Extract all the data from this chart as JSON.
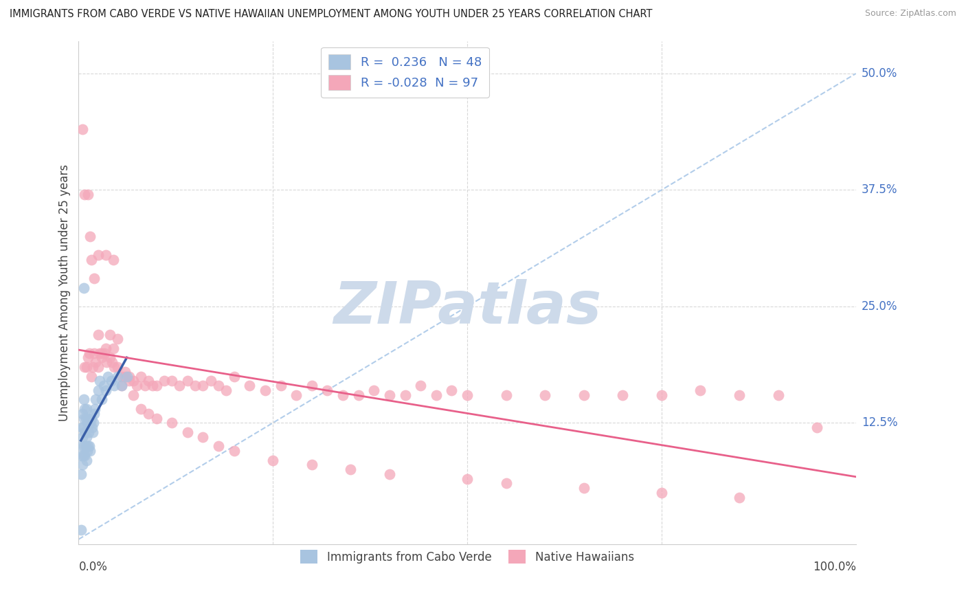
{
  "title": "IMMIGRANTS FROM CABO VERDE VS NATIVE HAWAIIAN UNEMPLOYMENT AMONG YOUTH UNDER 25 YEARS CORRELATION CHART",
  "source": "Source: ZipAtlas.com",
  "ylabel": "Unemployment Among Youth under 25 years",
  "ytick_labels": [
    "12.5%",
    "25.0%",
    "37.5%",
    "50.0%"
  ],
  "ytick_values": [
    0.125,
    0.25,
    0.375,
    0.5
  ],
  "xlim": [
    0.0,
    1.0
  ],
  "ylim": [
    -0.005,
    0.535
  ],
  "cabo_verde_R": 0.236,
  "cabo_verde_N": 48,
  "native_hawaiian_R": -0.028,
  "native_hawaiian_N": 97,
  "cabo_verde_color": "#a8c4e0",
  "native_hawaiian_color": "#f4a7b9",
  "cabo_verde_line_color": "#3a5fa8",
  "native_hawaiian_line_color": "#e8608a",
  "dashed_line_color": "#aac8e8",
  "watermark_color": "#cddaea",
  "background_color": "#ffffff",
  "grid_color": "#d8d8d8",
  "cabo_verde_x": [
    0.003,
    0.003,
    0.004,
    0.004,
    0.005,
    0.005,
    0.005,
    0.006,
    0.006,
    0.007,
    0.007,
    0.007,
    0.008,
    0.008,
    0.008,
    0.009,
    0.009,
    0.01,
    0.01,
    0.01,
    0.011,
    0.011,
    0.012,
    0.012,
    0.013,
    0.014,
    0.015,
    0.015,
    0.016,
    0.017,
    0.018,
    0.019,
    0.02,
    0.021,
    0.022,
    0.025,
    0.027,
    0.03,
    0.032,
    0.035,
    0.038,
    0.042,
    0.046,
    0.05,
    0.055,
    0.062,
    0.007,
    0.003
  ],
  "cabo_verde_y": [
    0.07,
    0.09,
    0.1,
    0.12,
    0.08,
    0.11,
    0.135,
    0.09,
    0.12,
    0.1,
    0.13,
    0.15,
    0.09,
    0.115,
    0.14,
    0.1,
    0.13,
    0.085,
    0.11,
    0.14,
    0.095,
    0.125,
    0.1,
    0.13,
    0.115,
    0.1,
    0.095,
    0.125,
    0.13,
    0.12,
    0.115,
    0.125,
    0.135,
    0.14,
    0.15,
    0.16,
    0.17,
    0.15,
    0.165,
    0.16,
    0.175,
    0.17,
    0.165,
    0.175,
    0.165,
    0.175,
    0.27,
    0.01
  ],
  "native_hawaiian_x": [
    0.005,
    0.008,
    0.01,
    0.012,
    0.014,
    0.016,
    0.018,
    0.02,
    0.022,
    0.025,
    0.027,
    0.03,
    0.033,
    0.036,
    0.04,
    0.043,
    0.046,
    0.05,
    0.055,
    0.06,
    0.065,
    0.07,
    0.075,
    0.08,
    0.085,
    0.09,
    0.095,
    0.1,
    0.11,
    0.12,
    0.13,
    0.14,
    0.15,
    0.16,
    0.17,
    0.18,
    0.19,
    0.2,
    0.22,
    0.24,
    0.26,
    0.28,
    0.3,
    0.32,
    0.34,
    0.36,
    0.38,
    0.4,
    0.42,
    0.44,
    0.46,
    0.48,
    0.5,
    0.55,
    0.6,
    0.65,
    0.7,
    0.75,
    0.8,
    0.85,
    0.9,
    0.95,
    0.008,
    0.012,
    0.016,
    0.02,
    0.025,
    0.03,
    0.035,
    0.04,
    0.045,
    0.05,
    0.055,
    0.06,
    0.065,
    0.07,
    0.08,
    0.09,
    0.1,
    0.12,
    0.14,
    0.16,
    0.18,
    0.2,
    0.25,
    0.3,
    0.35,
    0.4,
    0.5,
    0.55,
    0.65,
    0.75,
    0.85,
    0.015,
    0.025,
    0.035,
    0.045
  ],
  "native_hawaiian_y": [
    0.44,
    0.185,
    0.185,
    0.195,
    0.2,
    0.175,
    0.185,
    0.2,
    0.19,
    0.185,
    0.2,
    0.195,
    0.2,
    0.19,
    0.195,
    0.19,
    0.185,
    0.185,
    0.175,
    0.18,
    0.175,
    0.17,
    0.165,
    0.175,
    0.165,
    0.17,
    0.165,
    0.165,
    0.17,
    0.17,
    0.165,
    0.17,
    0.165,
    0.165,
    0.17,
    0.165,
    0.16,
    0.175,
    0.165,
    0.16,
    0.165,
    0.155,
    0.165,
    0.16,
    0.155,
    0.155,
    0.16,
    0.155,
    0.155,
    0.165,
    0.155,
    0.16,
    0.155,
    0.155,
    0.155,
    0.155,
    0.155,
    0.155,
    0.16,
    0.155,
    0.155,
    0.12,
    0.37,
    0.37,
    0.3,
    0.28,
    0.22,
    0.2,
    0.205,
    0.22,
    0.205,
    0.215,
    0.165,
    0.175,
    0.17,
    0.155,
    0.14,
    0.135,
    0.13,
    0.125,
    0.115,
    0.11,
    0.1,
    0.095,
    0.085,
    0.08,
    0.075,
    0.07,
    0.065,
    0.06,
    0.055,
    0.05,
    0.045,
    0.325,
    0.305,
    0.305,
    0.3
  ]
}
